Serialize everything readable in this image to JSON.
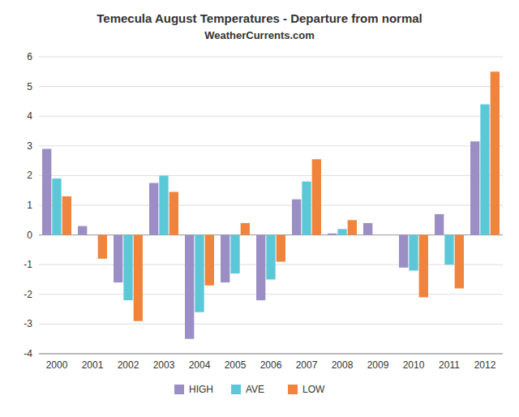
{
  "chart_data": {
    "type": "bar",
    "title": "Temecula August Temperatures - Departure from normal",
    "subtitle": "WeatherCurrents.com",
    "categories": [
      "2000",
      "2001",
      "2002",
      "2003",
      "2004",
      "2005",
      "2006",
      "2007",
      "2008",
      "2009",
      "2010",
      "2011",
      "2012"
    ],
    "series": [
      {
        "name": "HIGH",
        "color": "#9B8EC4",
        "values": [
          2.9,
          0.3,
          -1.6,
          1.75,
          -3.5,
          -1.6,
          -2.2,
          1.2,
          0.05,
          0.4,
          -1.1,
          0.7,
          3.15
        ]
      },
      {
        "name": "AVE",
        "color": "#5BC8D8",
        "values": [
          1.9,
          0.0,
          -2.2,
          2.0,
          -2.6,
          -1.3,
          -1.5,
          1.8,
          0.2,
          0.0,
          -1.2,
          -1.0,
          4.4
        ]
      },
      {
        "name": "LOW",
        "color": "#F0843C",
        "values": [
          1.3,
          -0.8,
          -2.9,
          1.45,
          -1.7,
          0.4,
          -0.9,
          2.55,
          0.5,
          0.0,
          -2.1,
          -1.8,
          5.5
        ]
      }
    ],
    "ylim": [
      -4,
      6
    ],
    "yticks": [
      -4,
      -3,
      -2,
      -1,
      0,
      1,
      2,
      3,
      4,
      5,
      6
    ],
    "grid": true,
    "legend": "bottom"
  }
}
